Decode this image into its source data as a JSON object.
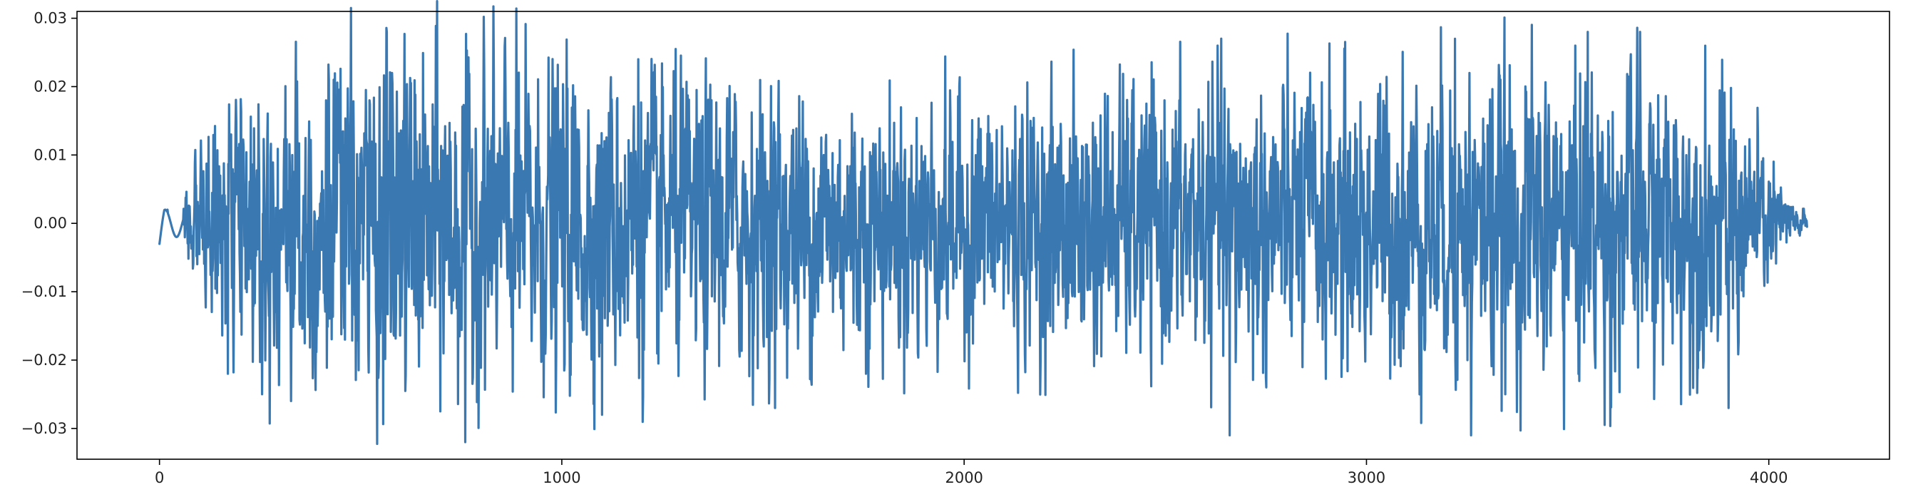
{
  "chart_data": {
    "type": "line",
    "title": "",
    "xlabel": "",
    "ylabel": "",
    "xlim": [
      -205,
      4300
    ],
    "ylim": [
      -0.0345,
      0.031
    ],
    "grid": false,
    "legend": null,
    "x_ticks": [
      0,
      1000,
      2000,
      3000,
      4000
    ],
    "x_tick_labels": [
      "0",
      "1000",
      "2000",
      "3000",
      "4000"
    ],
    "y_ticks": [
      -0.03,
      -0.02,
      -0.01,
      0.0,
      0.01,
      0.02,
      0.03
    ],
    "y_tick_labels": [
      "−0.03",
      "−0.02",
      "−0.01",
      "0.00",
      "0.01",
      "0.02",
      "0.03"
    ],
    "colors": {
      "line": "#3a78b2",
      "axes": "#000000",
      "text": "#222222"
    },
    "series": [
      {
        "x_start": 0,
        "x_step": 1,
        "n_points": 4096,
        "notable_points": [
          {
            "x": 0,
            "y": -0.003
          },
          {
            "x": 20,
            "y": 0.002
          },
          {
            "x": 170,
            "y": -0.022
          },
          {
            "x": 255,
            "y": -0.025
          },
          {
            "x": 565,
            "y": 0.028
          },
          {
            "x": 760,
            "y": -0.032
          },
          {
            "x": 1100,
            "y": -0.028
          },
          {
            "x": 1190,
            "y": 0.024
          },
          {
            "x": 1530,
            "y": -0.027
          },
          {
            "x": 2630,
            "y": 0.026
          },
          {
            "x": 2660,
            "y": -0.031
          },
          {
            "x": 3220,
            "y": 0.027
          },
          {
            "x": 3260,
            "y": -0.031
          },
          {
            "x": 3550,
            "y": 0.028
          },
          {
            "x": 3680,
            "y": 0.028
          },
          {
            "x": 3900,
            "y": -0.027
          },
          {
            "x": 4095,
            "y": -0.0005
          }
        ],
        "envelope": [
          {
            "x": 0,
            "amp": 0.002
          },
          {
            "x": 60,
            "amp": 0.003
          },
          {
            "x": 150,
            "amp": 0.01
          },
          {
            "x": 300,
            "amp": 0.014
          },
          {
            "x": 600,
            "amp": 0.015
          },
          {
            "x": 1000,
            "amp": 0.014
          },
          {
            "x": 1500,
            "amp": 0.012
          },
          {
            "x": 2000,
            "amp": 0.011
          },
          {
            "x": 2500,
            "amp": 0.012
          },
          {
            "x": 3000,
            "amp": 0.013
          },
          {
            "x": 3500,
            "amp": 0.014
          },
          {
            "x": 3900,
            "amp": 0.012
          },
          {
            "x": 4000,
            "amp": 0.006
          },
          {
            "x": 4060,
            "amp": 0.002
          },
          {
            "x": 4095,
            "amp": 0.001
          }
        ]
      }
    ]
  }
}
